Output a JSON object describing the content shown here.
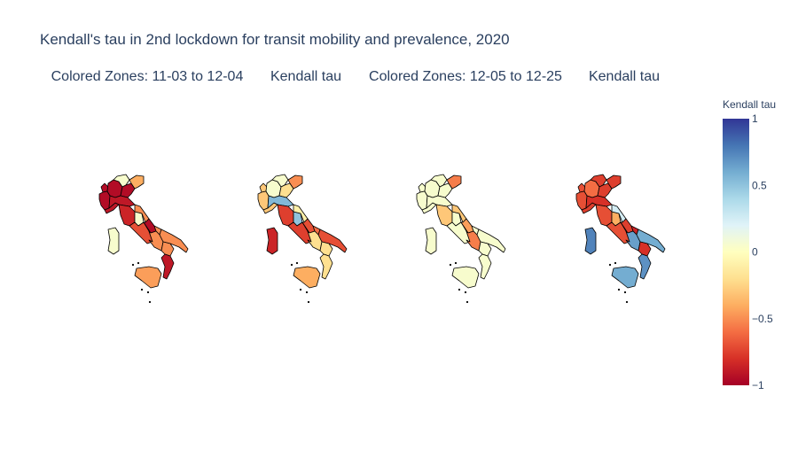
{
  "title": "Kendall's tau in 2nd lockdown for transit mobility and prevalence, 2020",
  "subplot_titles": [
    "Colored Zones: 11-03 to 12-04",
    "Kendall tau",
    "Colored Zones: 12-05 to 12-25",
    "Kendall tau"
  ],
  "colorbar": {
    "title": "Kendall tau",
    "ticks": [
      {
        "value": 1,
        "label": "1"
      },
      {
        "value": 0.5,
        "label": "0.5"
      },
      {
        "value": 0,
        "label": "0"
      },
      {
        "value": -0.5,
        "label": "−0.5"
      },
      {
        "value": -1,
        "label": "−1"
      }
    ],
    "range": [
      -1,
      1
    ],
    "colorscale": [
      [
        0,
        "#a50026"
      ],
      [
        0.1,
        "#d73027"
      ],
      [
        0.2,
        "#f46d43"
      ],
      [
        0.3,
        "#fdae61"
      ],
      [
        0.4,
        "#fee090"
      ],
      [
        0.5,
        "#ffffbf"
      ],
      [
        0.6,
        "#e0f3f8"
      ],
      [
        0.7,
        "#abd9e9"
      ],
      [
        0.8,
        "#74add1"
      ],
      [
        0.9,
        "#4575b4"
      ],
      [
        1,
        "#313695"
      ]
    ]
  },
  "chart_data": {
    "type": "choropleth",
    "regions": [
      "Valle d'Aosta",
      "Piemonte",
      "Lombardia",
      "Trentino-Alto Adige",
      "Veneto",
      "Friuli-Venezia Giulia",
      "Liguria",
      "Emilia-Romagna",
      "Toscana",
      "Umbria",
      "Marche",
      "Lazio",
      "Abruzzo",
      "Molise",
      "Campania",
      "Puglia",
      "Basilicata",
      "Calabria",
      "Sicilia",
      "Sardegna"
    ],
    "maps": [
      {
        "name": "Colored Zones: 11-03 to 12-04",
        "values": [
          -0.95,
          -0.95,
          -0.95,
          0.05,
          -0.95,
          -0.4,
          -0.9,
          -0.9,
          -0.85,
          0.05,
          -0.5,
          -0.7,
          -0.95,
          -0.5,
          -0.5,
          -0.5,
          -0.5,
          -0.9,
          -0.45,
          0.05
        ]
      },
      {
        "name": "Kendall tau",
        "values": [
          -0.3,
          -0.3,
          0.05,
          0.05,
          -0.2,
          -0.5,
          -0.3,
          0.55,
          -0.75,
          0.5,
          -0.1,
          -0.75,
          -0.7,
          -0.6,
          -0.2,
          -0.7,
          -0.2,
          -0.2,
          -0.4,
          -0.85
        ]
      },
      {
        "name": "Colored Zones: 12-05 to 12-25",
        "values": [
          0.05,
          0.05,
          0.05,
          0.05,
          0.05,
          -0.55,
          0.05,
          0.05,
          -0.3,
          0.05,
          -0.3,
          0.05,
          -0.45,
          0.05,
          -0.55,
          0.05,
          0.05,
          0.05,
          0.05,
          0.05
        ]
      },
      {
        "name": "Kendall tau",
        "values": [
          -0.7,
          -0.7,
          -0.6,
          -0.75,
          -0.75,
          -0.75,
          -0.75,
          -0.8,
          -0.7,
          -0.4,
          0.25,
          -0.7,
          -0.75,
          -0.85,
          0.65,
          0.6,
          -0.8,
          0.7,
          0.6,
          0.75
        ]
      }
    ]
  }
}
